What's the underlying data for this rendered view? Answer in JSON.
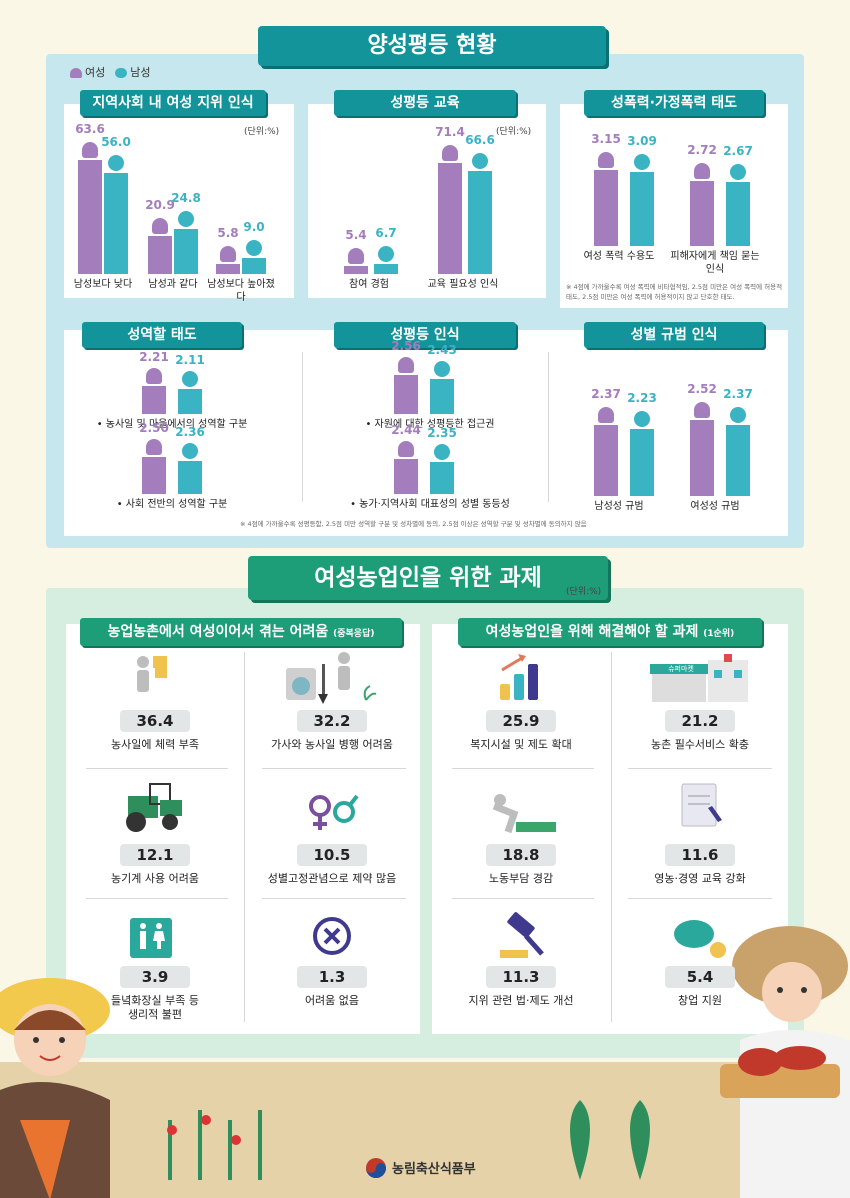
{
  "section1": {
    "title": "양성평등 현황"
  },
  "legend": [
    {
      "label": "여성",
      "color": "#a47dbd"
    },
    {
      "label": "남성",
      "color": "#3ab4c3"
    }
  ],
  "colors": {
    "female": "#a47dbd",
    "male": "#3ab4c3",
    "teal": "#13949b",
    "green": "#1e9e78"
  },
  "unit_label": "(단위:%)",
  "chart_data": [
    {
      "type": "bar",
      "title": "지역사회 내 여성 지위 인식",
      "unit": "(단위:%)",
      "categories": [
        "남성보다 낮다",
        "남성과 같다",
        "남성보다 높아졌다"
      ],
      "series": [
        {
          "name": "여성",
          "values": [
            63.6,
            20.9,
            5.8
          ]
        },
        {
          "name": "남성",
          "values": [
            56.0,
            24.8,
            9.0
          ]
        }
      ],
      "ylim": [
        0,
        70
      ]
    },
    {
      "type": "bar",
      "title": "성평등 교육",
      "unit": "(단위:%)",
      "categories": [
        "참여 경험",
        "교육 필요성 인식"
      ],
      "series": [
        {
          "name": "여성",
          "values": [
            5.4,
            71.4
          ]
        },
        {
          "name": "남성",
          "values": [
            6.7,
            66.6
          ]
        }
      ],
      "ylim": [
        0,
        80
      ]
    },
    {
      "type": "bar",
      "title": "성폭력·가정폭력 태도",
      "categories": [
        "여성 폭력 수용도",
        "피해자에게 책임 묻는 인식"
      ],
      "series": [
        {
          "name": "여성",
          "values": [
            3.15,
            2.72
          ]
        },
        {
          "name": "남성",
          "values": [
            3.09,
            2.67
          ]
        }
      ],
      "ylim": [
        0,
        4
      ],
      "note": "※ 4점에 가까울수록 여성 폭력에 비타협적임, 2.5점 미만은 여성 폭력에 허용적 태도, 2.5점 미만은 여성 폭력에 허용적이지 않고 단호한 태도."
    },
    {
      "type": "bar",
      "title": "성역할 태도",
      "categories": [
        "농사일 및 마을에서의 성역할 구분",
        "사회 전반의 성역할 구분"
      ],
      "series": [
        {
          "name": "여성",
          "values": [
            2.21,
            2.5
          ]
        },
        {
          "name": "남성",
          "values": [
            2.11,
            2.36
          ]
        }
      ],
      "ylim": [
        0,
        4
      ]
    },
    {
      "type": "bar",
      "title": "성평등 인식",
      "categories": [
        "자원에 대한 성평등한 접근권",
        "농가·지역사회 대표성의 성별 동등성"
      ],
      "series": [
        {
          "name": "여성",
          "values": [
            2.56,
            2.44
          ]
        },
        {
          "name": "남성",
          "values": [
            2.43,
            2.35
          ]
        }
      ],
      "ylim": [
        0,
        4
      ]
    },
    {
      "type": "bar",
      "title": "성별 규범 인식",
      "categories": [
        "남성성 규범",
        "여성성 규범"
      ],
      "series": [
        {
          "name": "여성",
          "values": [
            2.37,
            2.52
          ]
        },
        {
          "name": "남성",
          "values": [
            2.23,
            2.37
          ]
        }
      ],
      "ylim": [
        0,
        4
      ]
    },
    {
      "type": "table",
      "title": "농업농촌에서 여성이어서 겪는 어려움",
      "subtitle": "(중복응답)",
      "categories": [
        "농사일에 체력 부족",
        "가사와 농사일 병행 어려움",
        "농기계 사용 어려움",
        "성별고정관념으로 제약 많음",
        "들녘화장실 부족 등 생리적 불편",
        "어려움 없음"
      ],
      "values": [
        36.4,
        32.2,
        12.1,
        10.5,
        3.9,
        1.3
      ]
    },
    {
      "type": "table",
      "title": "여성농업인을 위해 해결해야 할 과제",
      "subtitle": "(1순위)",
      "categories": [
        "복지시설 및 제도 확대",
        "농촌 필수서비스 확충",
        "노동부담 경감",
        "영농·경영 교육 강화",
        "지위 관련 법·제도 개선",
        "창업 지원"
      ],
      "values": [
        25.9,
        21.2,
        18.8,
        11.6,
        11.3,
        5.4
      ]
    }
  ],
  "note_gender_role": "※ 4점에 가까울수록 성평등함, 2.5점 미만 성역할 구분 및 성차별에 동의, 2.5점 이상은 성역할 구분 및 성차별에 동의하지 않음",
  "section2": {
    "title": "여성농업인을 위한 과제",
    "unit": "(단위:%)"
  },
  "store_sign": "슈퍼마켓",
  "footer": {
    "org": "농림축산식품부"
  }
}
